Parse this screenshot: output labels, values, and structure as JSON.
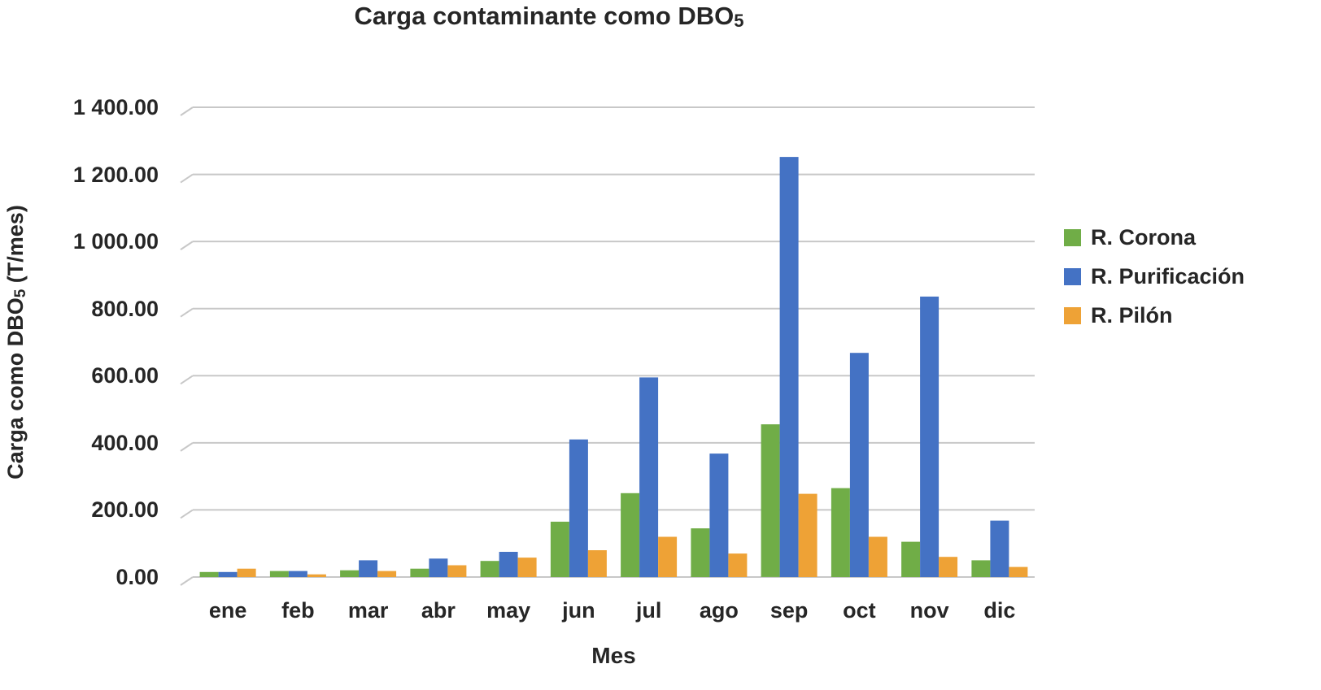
{
  "chart_data": {
    "type": "bar",
    "title": {
      "text": "Carga contaminante como DBO5",
      "main": "Carga contaminante como DBO",
      "sub": "5"
    },
    "xlabel": "Mes",
    "ylabel": {
      "text": "Carga como DBO5 (T/mes)",
      "pre": "Carga como DBO",
      "sub": "5",
      "post": " (T/mes)"
    },
    "categories": [
      "ene",
      "feb",
      "mar",
      "abr",
      "may",
      "jun",
      "jul",
      "ago",
      "sep",
      "oct",
      "nov",
      "dic"
    ],
    "series": [
      {
        "name": "R. Corona",
        "color": "#70AD47",
        "values": [
          15,
          18,
          20,
          25,
          48,
          165,
          250,
          145,
          455,
          265,
          105,
          50
        ]
      },
      {
        "name": "R. Purificación",
        "color": "#4472C4",
        "values": [
          15,
          18,
          50,
          55,
          75,
          410,
          595,
          368,
          1252,
          668,
          836,
          168
        ]
      },
      {
        "name": "R. Pilón",
        "color": "#EEA236",
        "values": [
          25,
          8,
          18,
          35,
          58,
          80,
          120,
          70,
          248,
          120,
          60,
          30
        ]
      }
    ],
    "ylim": [
      0,
      1400
    ],
    "ytick_step": 200,
    "ytick_labels": [
      "0.00",
      "200.00",
      "400.00",
      "600.00",
      "800.00",
      "1 000.00",
      "1 200.00",
      "1 400.00"
    ],
    "grid": true,
    "gridline_color": "#c8c8c8",
    "legend_position": "right"
  }
}
